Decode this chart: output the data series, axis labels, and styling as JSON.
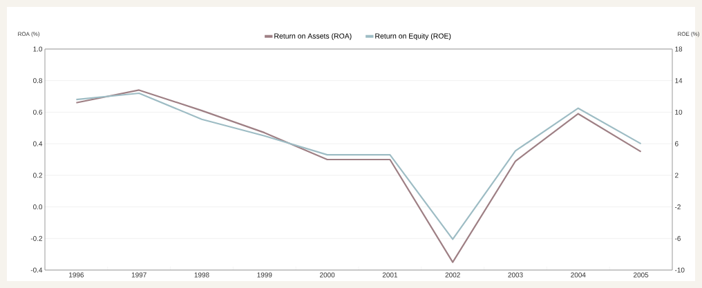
{
  "chart_data": {
    "type": "line",
    "categories": [
      "1996",
      "1997",
      "1998",
      "1999",
      "2000",
      "2001",
      "2002",
      "2003",
      "2004",
      "2005"
    ],
    "ylabel": "ROA (%)",
    "y2label": "ROE (%)",
    "ylim": [
      -0.4,
      1.0
    ],
    "yticks": [
      {
        "value": -0.4,
        "label": "-0.4"
      },
      {
        "value": -0.2,
        "label": "-0.2"
      },
      {
        "value": 0,
        "label": "0.0"
      },
      {
        "value": 0.2,
        "label": "0.2"
      },
      {
        "value": 0.4,
        "label": "0.4"
      },
      {
        "value": 0.6,
        "label": "0.6"
      },
      {
        "value": 0.8,
        "label": "0.8"
      },
      {
        "value": 1.0,
        "label": "1.0"
      }
    ],
    "y2lim": [
      -10,
      18
    ],
    "y2ticks": [
      -10,
      -6,
      -2,
      2,
      6,
      10,
      14,
      18
    ],
    "grid": "y",
    "legend": "top",
    "marker": "none",
    "line_style": "solid",
    "series": [
      {
        "name": "Return on Assets (ROA)",
        "color": "#9e7f84",
        "values": [
          0.66,
          0.74,
          0.61,
          0.47,
          0.3,
          0.3,
          -0.35,
          0.29,
          0.59,
          0.35
        ]
      },
      {
        "name": "Return on Equity (ROE)",
        "color": "#9dbcc4",
        "axis": "y2",
        "values": [
          11.6,
          12.4,
          9.1,
          7.0,
          4.6,
          4.6,
          -6.1,
          5.1,
          10.5,
          6.0
        ]
      }
    ]
  }
}
